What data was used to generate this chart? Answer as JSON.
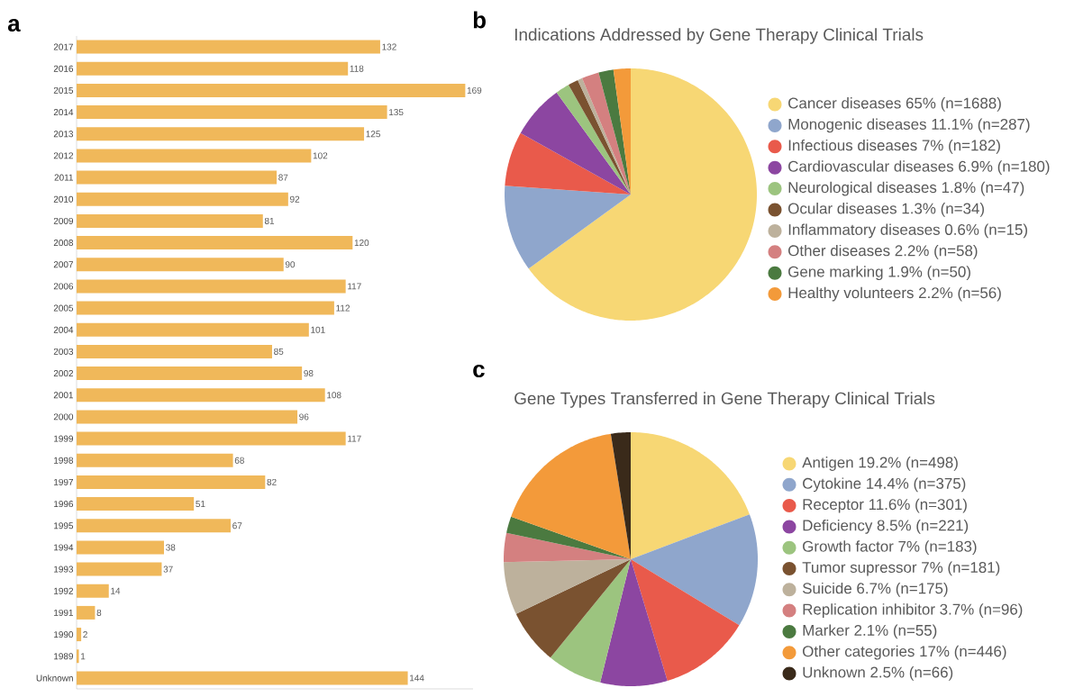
{
  "chart_data": [
    {
      "type": "bar",
      "orientation": "horizontal",
      "annotations": [
        "a"
      ],
      "categories": [
        "2017",
        "2016",
        "2015",
        "2014",
        "2013",
        "2012",
        "2011",
        "2010",
        "2009",
        "2008",
        "2007",
        "2006",
        "2005",
        "2004",
        "2003",
        "2002",
        "2001",
        "2000",
        "1999",
        "1998",
        "1997",
        "1996",
        "1995",
        "1994",
        "1993",
        "1992",
        "1991",
        "1990",
        "1989",
        "Unknown"
      ],
      "values": [
        132,
        118,
        169,
        135,
        125,
        102,
        87,
        92,
        81,
        120,
        90,
        117,
        112,
        101,
        85,
        98,
        108,
        96,
        117,
        68,
        82,
        51,
        67,
        38,
        37,
        14,
        8,
        2,
        1,
        144
      ],
      "color": "#f0b85a",
      "data_labels": true,
      "tick_labels": "y"
    },
    {
      "type": "pie",
      "annotations": [
        "b"
      ],
      "title": "Indications Addressed by Gene Therapy Clinical Trials",
      "legend": "right",
      "categories": [
        "Cancer diseases 65% (n=1688)",
        "Monogenic diseases 11.1% (n=287)",
        "Infectious diseases  7% (n=182)",
        "Cardiovascular diseases 6.9% (n=180)",
        "Neurological diseases 1.8% (n=47)",
        "Ocular diseases 1.3% (n=34)",
        "Inflammatory diseases 0.6% (n=15)",
        "Other diseases 2.2% (n=58)",
        "Gene marking 1.9% (n=50)",
        "Healthy volunteers 2.2% (n=56)"
      ],
      "values": [
        65,
        11.1,
        7,
        6.9,
        1.8,
        1.3,
        0.6,
        2.2,
        1.9,
        2.2
      ],
      "colors": [
        "#f7d774",
        "#8fa6cc",
        "#e95a4b",
        "#8c46a1",
        "#9cc47f",
        "#7a5230",
        "#bdb19c",
        "#d48080",
        "#4b7a40",
        "#f39a3a"
      ]
    },
    {
      "type": "pie",
      "annotations": [
        "c"
      ],
      "title": "Gene Types Transferred in Gene Therapy Clinical Trials",
      "legend": "right",
      "categories": [
        "Antigen 19.2% (n=498)",
        "Cytokine 14.4% (n=375)",
        "Receptor 11.6% (n=301)",
        "Deficiency 8.5% (n=221)",
        "Growth factor 7% (n=183)",
        "Tumor supressor 7% (n=181)",
        "Suicide 6.7% (n=175)",
        "Replication inhibitor 3.7% (n=96)",
        "Marker 2.1% (n=55)",
        "Other categories 17% (n=446)",
        "Unknown 2.5% (n=66)"
      ],
      "values": [
        19.2,
        14.4,
        11.6,
        8.5,
        7,
        7,
        6.7,
        3.7,
        2.1,
        17,
        2.5
      ],
      "colors": [
        "#f7d774",
        "#8fa6cc",
        "#e95a4b",
        "#8c46a1",
        "#9cc47f",
        "#7a5230",
        "#bdb19c",
        "#d48080",
        "#4b7a40",
        "#f39a3a",
        "#3a2a1a"
      ]
    }
  ]
}
